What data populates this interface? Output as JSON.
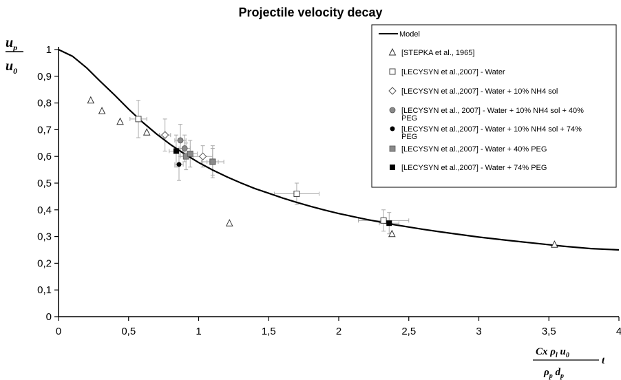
{
  "chart_data": {
    "type": "scatter",
    "title": "Projectile velocity decay",
    "xlim": [
      0,
      4
    ],
    "ylim": [
      0,
      1
    ],
    "x_ticks": [
      "0",
      "0,5",
      "1",
      "1,5",
      "2",
      "2,5",
      "3",
      "3,5",
      "4"
    ],
    "y_ticks": [
      "0",
      "0,1",
      "0,2",
      "0,3",
      "0,4",
      "0,5",
      "0,6",
      "0,7",
      "0,8",
      "0,9",
      "1"
    ],
    "ylabel": {
      "num": "u",
      "num_sub": "p",
      "den": "u",
      "den_sub": "0"
    },
    "xlabel": {
      "num": "Cx ρ",
      "num_sub": "l",
      "num_rest": " u",
      "num_rest_sub": "0",
      "t": "t",
      "den": "ρ",
      "den_sub": "p",
      "den_rest": " d",
      "den_rest_sub": "p"
    },
    "grid": false,
    "legend_position": "top-right",
    "model": {
      "name": "Model",
      "x": [
        0,
        0.1,
        0.2,
        0.3,
        0.4,
        0.5,
        0.6,
        0.7,
        0.8,
        0.9,
        1.0,
        1.1,
        1.2,
        1.3,
        1.4,
        1.5,
        1.6,
        1.7,
        1.8,
        1.9,
        2.0,
        2.2,
        2.4,
        2.6,
        2.8,
        3.0,
        3.2,
        3.4,
        3.6,
        3.8,
        4.0
      ],
      "y": [
        1.0,
        0.975,
        0.932,
        0.88,
        0.83,
        0.777,
        0.728,
        0.684,
        0.644,
        0.609,
        0.577,
        0.549,
        0.524,
        0.501,
        0.48,
        0.462,
        0.444,
        0.428,
        0.413,
        0.399,
        0.386,
        0.364,
        0.344,
        0.327,
        0.312,
        0.298,
        0.286,
        0.275,
        0.264,
        0.255,
        0.25
      ]
    },
    "series": [
      {
        "name": "[STEPKA et al., 1965]",
        "marker": "triangle",
        "points": [
          [
            0.23,
            0.81
          ],
          [
            0.31,
            0.77
          ],
          [
            0.44,
            0.73
          ],
          [
            0.63,
            0.69
          ],
          [
            1.22,
            0.35
          ],
          [
            2.38,
            0.31
          ],
          [
            3.54,
            0.27
          ]
        ]
      },
      {
        "name": "[LECYSYN et al.,2007] - Water",
        "marker": "square-open",
        "points": [
          [
            0.57,
            0.74,
            0.06,
            0.07
          ],
          [
            1.1,
            0.58,
            0.08,
            0.06
          ],
          [
            1.7,
            0.46,
            0.16,
            0.04
          ],
          [
            2.32,
            0.36,
            0.18,
            0.04
          ]
        ]
      },
      {
        "name": "[LECYSYN et al.,2007] - Water + 10% NH4 sol",
        "marker": "diamond-open",
        "points": [
          [
            0.76,
            0.68,
            0.04,
            0.06
          ],
          [
            1.03,
            0.6,
            0.07,
            0.04
          ]
        ]
      },
      {
        "name": "[LECYSYN et al., 2007]  - Water + 10% NH4 sol + 40% PEG",
        "marker": "circle-gray",
        "points": [
          [
            0.87,
            0.66,
            0.04,
            0.06
          ],
          [
            0.9,
            0.63,
            0.04,
            0.05
          ]
        ]
      },
      {
        "name": "[LECYSYN et al.,2007]  - Water + 10% NH4 sol + 74% PEG",
        "marker": "circle-black",
        "points": [
          [
            0.86,
            0.57,
            0.03,
            0.06
          ]
        ]
      },
      {
        "name": "[LECYSYN et al.,2007]  - Water + 40% PEG",
        "marker": "square-gray",
        "points": [
          [
            0.91,
            0.6,
            0.04,
            0.05
          ],
          [
            0.94,
            0.61,
            0.05,
            0.05
          ],
          [
            1.1,
            0.58,
            0.04,
            0.05
          ]
        ]
      },
      {
        "name": "[LECYSYN et al.,2007]  - Water + 74% PEG",
        "marker": "square-black",
        "points": [
          [
            0.84,
            0.62,
            0.05,
            0.06
          ],
          [
            2.36,
            0.35,
            0.07,
            0.04
          ]
        ]
      }
    ]
  }
}
